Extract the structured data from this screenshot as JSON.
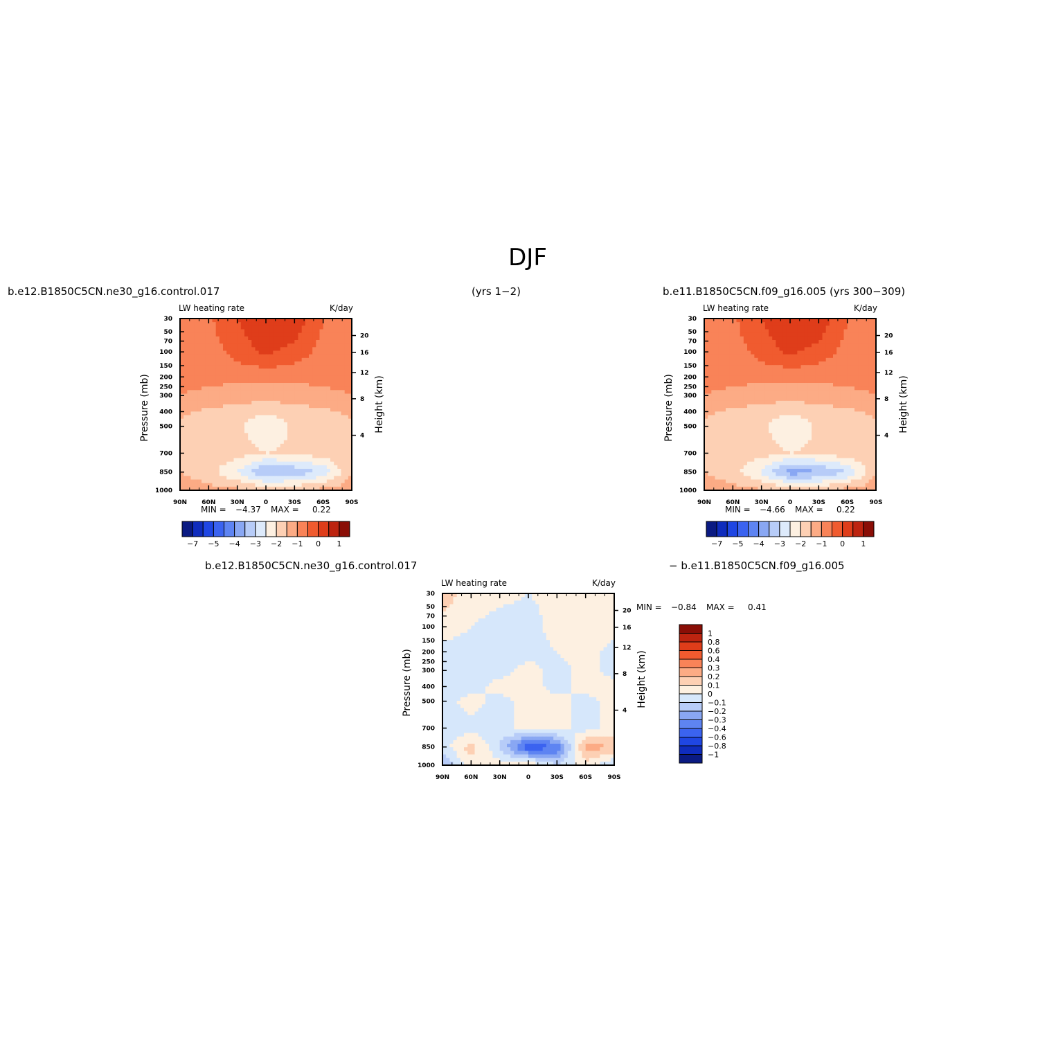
{
  "figure": {
    "title": "DJF",
    "case_a": "b.e12.B1850C5CN.ne30_g16.control.017",
    "case_a_years": "(yrs 1−2)",
    "case_b": "b.e11.B1850C5CN.f09_g16.005 (yrs 300−309)",
    "diff_case_a": "b.e12.B1850C5CN.ne30_g16.control.017",
    "diff_case_b": "−  b.e11.B1850C5CN.f09_g16.005"
  },
  "colors": {
    "abs_levels": [
      "#0a1a82",
      "#0f2cbd",
      "#1f46e3",
      "#3b63f0",
      "#5e84f2",
      "#89a7f3",
      "#b7ccf8",
      "#ddeafb",
      "#fdf0e1",
      "#fdd0b4",
      "#fcab85",
      "#f98358",
      "#f05b2f",
      "#df3d1a",
      "#bd2410",
      "#8a0e06"
    ],
    "diff_levels": [
      "#0a1a82",
      "#0f2cbd",
      "#1f46e3",
      "#3b63f0",
      "#5e84f2",
      "#89a7f3",
      "#b7ccf8",
      "#d6e7fb",
      "#fdf0e1",
      "#fdd0b4",
      "#fcab85",
      "#f98358",
      "#f05b2f",
      "#df3d1a",
      "#bd2410",
      "#8a0e06"
    ]
  },
  "chart_data": [
    {
      "type": "heatmap",
      "title": "LW heating rate",
      "units": "K/day",
      "ylabel": "Pressure (mb)",
      "ylabel_right": "Height (km)",
      "x_tick_labels": [
        "90N",
        "60N",
        "30N",
        "0",
        "30S",
        "60S",
        "90S"
      ],
      "y_tick_labels": [
        "30",
        "50",
        "70",
        "100",
        "150",
        "200",
        "250",
        "300",
        "400",
        "500",
        "700",
        "850",
        "1000"
      ],
      "y_right_tick_labels": [
        "20",
        "16",
        "12",
        "8",
        "4"
      ],
      "stats": {
        "min_label": "MIN =",
        "min": "−4.37",
        "max_label": "MAX =",
        "max": "0.22"
      },
      "colorbar_labels": [
        "−7",
        "−5",
        "−4",
        "−3",
        "−2",
        "−1",
        "0",
        "1"
      ],
      "field": {
        "latitudes": [
          90,
          60,
          30,
          0,
          -30,
          -60,
          -90
        ],
        "pressures_mb": [
          30,
          100,
          200,
          300,
          400,
          500,
          700,
          850,
          1000
        ],
        "values": [
          [
            -1.0,
            -0.6,
            0.0,
            0.4,
            0.3,
            -0.5,
            -1.0
          ],
          [
            -0.9,
            -0.8,
            -0.3,
            0.1,
            -0.2,
            -0.7,
            -0.9
          ],
          [
            -0.9,
            -0.9,
            -0.9,
            -0.9,
            -0.9,
            -0.9,
            -0.9
          ],
          [
            -1.0,
            -1.1,
            -1.2,
            -1.3,
            -1.2,
            -1.1,
            -1.0
          ],
          [
            -1.4,
            -1.6,
            -1.8,
            -1.9,
            -1.8,
            -1.6,
            -1.4
          ],
          [
            -1.6,
            -1.7,
            -1.9,
            -2.4,
            -1.9,
            -1.7,
            -1.6
          ],
          [
            -1.6,
            -1.7,
            -1.8,
            -2.0,
            -1.9,
            -1.7,
            -1.6
          ],
          [
            -1.5,
            -1.8,
            -2.5,
            -3.6,
            -3.4,
            -2.9,
            -1.5
          ],
          [
            -1.2,
            -1.3,
            -1.4,
            -1.6,
            -1.5,
            -1.3,
            -1.2
          ]
        ]
      }
    },
    {
      "type": "heatmap",
      "title": "LW heating rate",
      "units": "K/day",
      "ylabel": "Pressure (mb)",
      "ylabel_right": "Height (km)",
      "x_tick_labels": [
        "90N",
        "60N",
        "30N",
        "0",
        "30S",
        "60S",
        "90S"
      ],
      "y_tick_labels": [
        "30",
        "50",
        "70",
        "100",
        "150",
        "200",
        "250",
        "300",
        "400",
        "500",
        "700",
        "850",
        "1000"
      ],
      "y_right_tick_labels": [
        "20",
        "16",
        "12",
        "8",
        "4"
      ],
      "stats": {
        "min_label": "MIN =",
        "min": "−4.66",
        "max_label": "MAX =",
        "max": "0.22"
      },
      "colorbar_labels": [
        "−7",
        "−5",
        "−4",
        "−3",
        "−2",
        "−1",
        "0",
        "1"
      ],
      "field": {
        "latitudes": [
          90,
          60,
          30,
          0,
          -30,
          -60,
          -90
        ],
        "pressures_mb": [
          30,
          100,
          200,
          300,
          400,
          500,
          700,
          850,
          1000
        ],
        "values": [
          [
            -1.0,
            -0.6,
            0.0,
            0.4,
            0.3,
            -0.5,
            -1.0
          ],
          [
            -0.9,
            -0.8,
            -0.3,
            0.1,
            -0.2,
            -0.7,
            -0.9
          ],
          [
            -0.9,
            -0.9,
            -0.9,
            -0.9,
            -0.9,
            -0.9,
            -0.9
          ],
          [
            -1.0,
            -1.1,
            -1.2,
            -1.3,
            -1.2,
            -1.1,
            -1.0
          ],
          [
            -1.4,
            -1.6,
            -1.8,
            -1.9,
            -1.8,
            -1.6,
            -1.4
          ],
          [
            -1.6,
            -1.7,
            -1.9,
            -2.4,
            -1.9,
            -1.7,
            -1.6
          ],
          [
            -1.6,
            -1.7,
            -1.8,
            -2.0,
            -1.9,
            -1.7,
            -1.6
          ],
          [
            -1.5,
            -1.8,
            -2.6,
            -3.8,
            -3.6,
            -3.0,
            -1.5
          ],
          [
            -1.2,
            -1.3,
            -1.4,
            -1.6,
            -1.5,
            -1.3,
            -1.2
          ]
        ]
      }
    },
    {
      "type": "heatmap",
      "title": "LW heating rate",
      "units": "K/day",
      "ylabel": "Pressure (mb)",
      "ylabel_right": "Height (km)",
      "x_tick_labels": [
        "90N",
        "60N",
        "30N",
        "0",
        "30S",
        "60S",
        "90S"
      ],
      "y_tick_labels": [
        "30",
        "50",
        "70",
        "100",
        "150",
        "200",
        "250",
        "300",
        "400",
        "500",
        "700",
        "850",
        "1000"
      ],
      "y_right_tick_labels": [
        "20",
        "16",
        "12",
        "8",
        "4"
      ],
      "stats": {
        "min_label": "MIN =",
        "min": "−0.84",
        "max_label": "MAX =",
        "max": "0.41"
      },
      "colorbar_labels": [
        "1",
        "0.8",
        "0.6",
        "0.4",
        "0.3",
        "0.2",
        "0.1",
        "0",
        "−0.1",
        "−0.2",
        "−0.3",
        "−0.4",
        "−0.6",
        "−0.8",
        "−1"
      ],
      "field": {
        "latitudes": [
          90,
          60,
          30,
          0,
          -30,
          -60,
          -90
        ],
        "pressures_mb": [
          30,
          100,
          200,
          300,
          400,
          500,
          700,
          850,
          1000
        ],
        "values": [
          [
            0.15,
            0.05,
            0.02,
            0.0,
            0.02,
            0.05,
            0.05
          ],
          [
            0.05,
            0.0,
            -0.05,
            -0.05,
            0.05,
            0.05,
            0.05
          ],
          [
            -0.05,
            -0.05,
            -0.05,
            -0.05,
            0.0,
            0.05,
            -0.05
          ],
          [
            -0.05,
            -0.05,
            -0.05,
            0.05,
            -0.05,
            0.05,
            -0.05
          ],
          [
            -0.05,
            -0.05,
            0.05,
            0.05,
            -0.05,
            0.05,
            0.05
          ],
          [
            -0.05,
            0.05,
            -0.05,
            0.05,
            0.05,
            -0.05,
            0.05
          ],
          [
            -0.05,
            -0.05,
            -0.05,
            0.05,
            0.05,
            -0.05,
            0.05
          ],
          [
            -0.05,
            0.15,
            -0.1,
            -0.5,
            -0.4,
            0.25,
            0.2
          ],
          [
            -0.2,
            0.05,
            0.05,
            0.1,
            -0.1,
            0.05,
            -0.1
          ]
        ]
      }
    }
  ]
}
